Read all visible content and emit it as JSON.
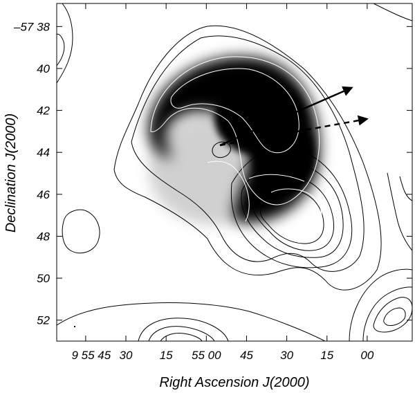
{
  "chart_data": {
    "type": "contour",
    "xlabel": "Right Ascension J(2000)",
    "ylabel": "Declination  J(2000)",
    "x_axis": {
      "unit": "hms",
      "ticks": [
        {
          "value": 595.75,
          "label": "9 55 45"
        },
        {
          "value": 595.5,
          "label": "30"
        },
        {
          "value": 595.25,
          "label": "15"
        },
        {
          "value": 595.0,
          "label": "55 00"
        },
        {
          "value": 594.75,
          "label": "45"
        },
        {
          "value": 594.5,
          "label": "30"
        },
        {
          "value": 594.25,
          "label": "15"
        },
        {
          "value": 594.0,
          "label": "00"
        }
      ],
      "range": [
        595.93,
        593.72
      ]
    },
    "y_axis": {
      "unit": "arcmin below -57 deg",
      "ticks": [
        {
          "value": 38,
          "label": "–57 38"
        },
        {
          "value": 40,
          "label": "40"
        },
        {
          "value": 42,
          "label": "42"
        },
        {
          "value": 44,
          "label": "44"
        },
        {
          "value": 46,
          "label": "46"
        },
        {
          "value": 48,
          "label": "48"
        },
        {
          "value": 50,
          "label": "50"
        },
        {
          "value": 52,
          "label": "52"
        }
      ],
      "range": [
        36.9,
        53.0
      ]
    },
    "greyscale_emission": {
      "peak": [
        594.62,
        42.6
      ],
      "shape": "crescent",
      "color": "#000000"
    },
    "contours": {
      "color_outer": "#000000",
      "color_inner": "#ffffff",
      "main_source_peak": [
        594.51,
        47.3
      ],
      "secondary_peak": [
        594.94,
        43.7
      ],
      "levels": 8
    },
    "arrows": [
      {
        "style": "solid",
        "from": [
          594.92,
          43.7
        ],
        "to": [
          594.16,
          41.1
        ]
      },
      {
        "style": "dashed",
        "from": [
          594.92,
          43.7
        ],
        "to": [
          594.05,
          42.5
        ]
      }
    ],
    "grid": false,
    "legend": "none"
  }
}
